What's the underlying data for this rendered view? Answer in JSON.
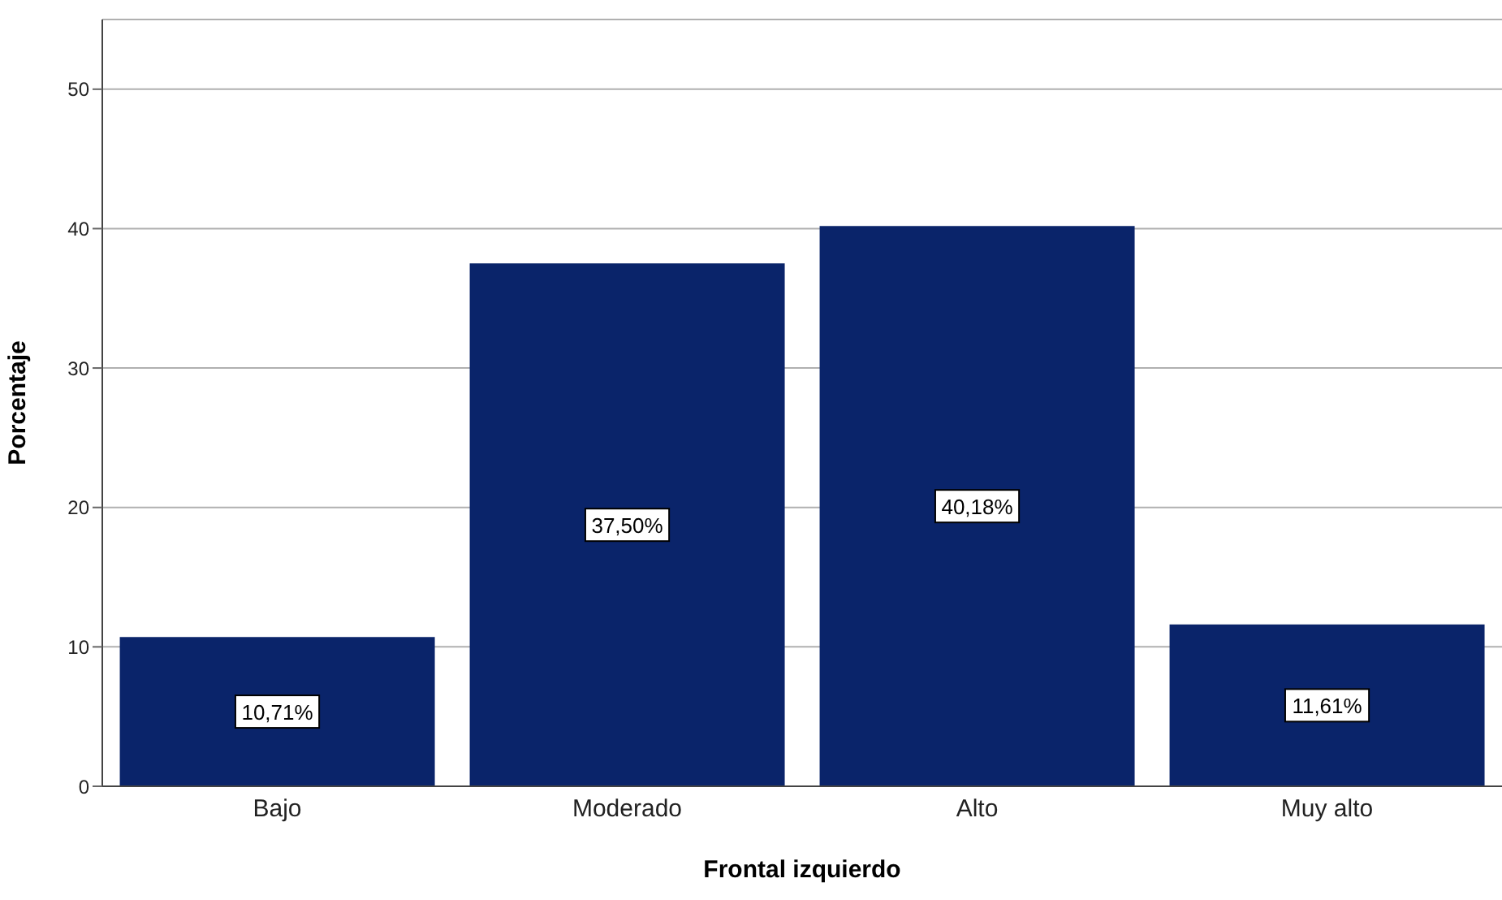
{
  "chart_data": {
    "type": "bar",
    "xlabel": "Frontal izquierdo",
    "ylabel": "Porcentaje",
    "categories": [
      "Bajo",
      "Moderado",
      "Alto",
      "Muy alto"
    ],
    "values": [
      10.71,
      37.5,
      40.18,
      11.61
    ],
    "value_labels": [
      "10,71%",
      "37,50%",
      "40,18%",
      "11,61%"
    ],
    "color": "#0a246a",
    "ylim": [
      0,
      55
    ],
    "yticks": [
      0,
      10,
      20,
      30,
      40,
      50
    ],
    "grid": "y"
  }
}
